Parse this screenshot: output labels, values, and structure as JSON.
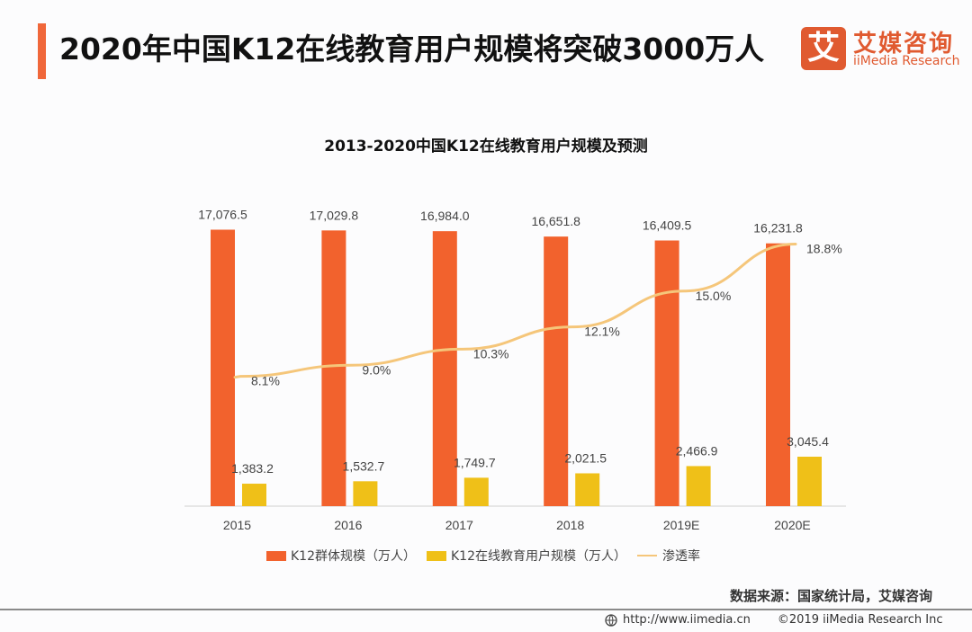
{
  "header": {
    "title": "2020年中国K12在线教育用户规模将突破3000万人",
    "logo_mark": "艾",
    "logo_cn": "艾媒咨询",
    "logo_en": "iiMedia Research"
  },
  "colors": {
    "accent": "#f0673a",
    "bar_group": "#f2622d",
    "bar_online": "#efc018",
    "line_rate": "#f5c67a",
    "logo": "#e05a30"
  },
  "chart_data": {
    "type": "bar",
    "title": "2013-2020中国K12在线教育用户规模及预测",
    "xlabel": "",
    "ylabel": "",
    "categories": [
      "2015",
      "2016",
      "2017",
      "2018",
      "2019E",
      "2020E"
    ],
    "series": [
      {
        "name": "K12群体规模（万人）",
        "type": "bar",
        "values": [
          17076.5,
          17029.8,
          16984.0,
          16651.8,
          16409.5,
          16231.8
        ],
        "labels": [
          "17,076.5",
          "17,029.8",
          "16,984.0",
          "16,651.8",
          "16,409.5",
          "16,231.8"
        ]
      },
      {
        "name": "K12在线教育用户规模（万人）",
        "type": "bar",
        "values": [
          1383.2,
          1532.7,
          1749.7,
          2021.5,
          2466.9,
          3045.4
        ],
        "labels": [
          "1,383.2",
          "1,532.7",
          "1,749.7",
          "2,021.5",
          "2,466.9",
          "3,045.4"
        ]
      },
      {
        "name": "渗透率",
        "type": "line",
        "axis": "secondary",
        "values": [
          8.1,
          9.0,
          10.3,
          12.1,
          15.0,
          18.8
        ],
        "labels": [
          "8.1%",
          "9.0%",
          "10.3%",
          "12.1%",
          "15.0%",
          "18.8%"
        ]
      }
    ],
    "ylim": [
      0,
      18000
    ],
    "y2lim": [
      0,
      24
    ],
    "grid": false,
    "legend": "bottom"
  },
  "footer": {
    "source": "数据来源：国家统计局，艾媒咨询",
    "url": "http://www.iimedia.cn",
    "copyright": "©2019  iiMedia Research  Inc"
  }
}
